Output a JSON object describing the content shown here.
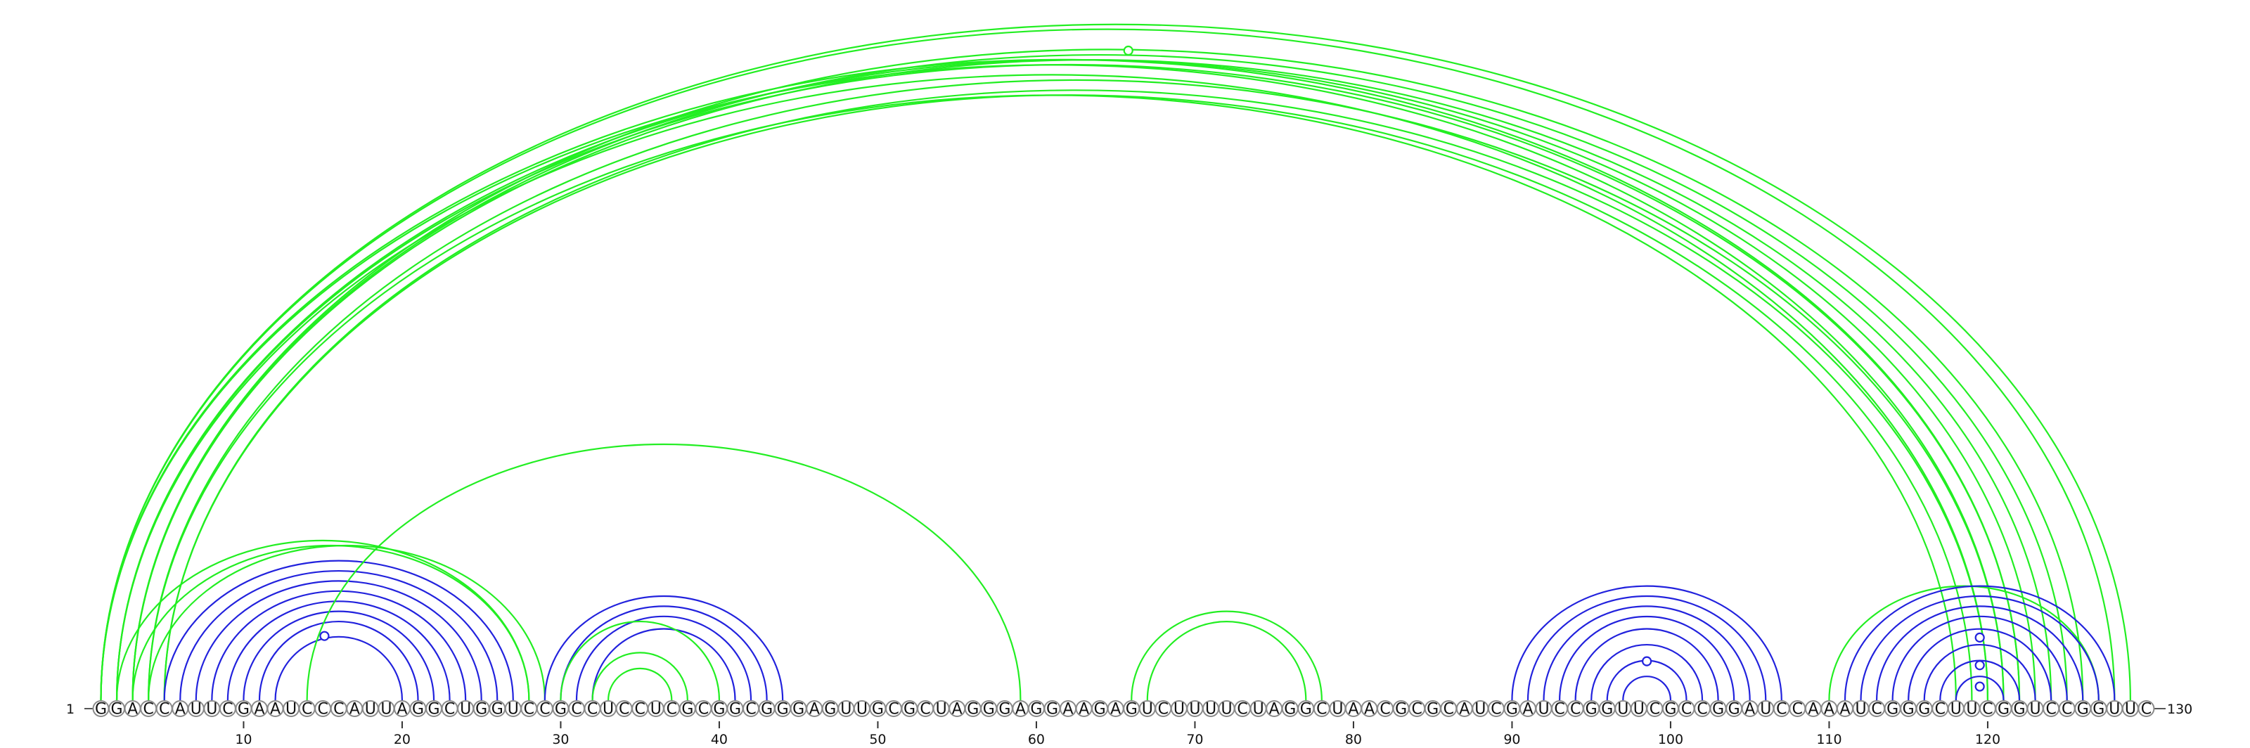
{
  "sequence": "GGACCAUUCGAAUCCCAUUAGGCUGGUCCGCCUCCUCGCGGCGGGAGUUGCGCUAGGGAGGAAGAGUCUUUUCUAGGCUAACGCGCAUCGAUCCGGUUCGCCGGAUCCAAAUCGGGCUUCGGUCCGGUUC",
  "start_label": "1",
  "end_label": "130",
  "axis_ticks": [
    10,
    20,
    30,
    40,
    50,
    60,
    70,
    80,
    90,
    100,
    110,
    120
  ],
  "colors": {
    "green": "#22ee22",
    "blue": "#2222dd"
  },
  "arcs": [
    {
      "i": 1,
      "j": 128,
      "color": "green"
    },
    {
      "i": 1,
      "j": 129,
      "color": "green"
    },
    {
      "i": 1,
      "j": 122,
      "color": "green"
    },
    {
      "i": 1,
      "j": 121,
      "color": "green"
    },
    {
      "i": 2,
      "j": 122,
      "color": "green"
    },
    {
      "i": 2,
      "j": 123,
      "color": "green"
    },
    {
      "i": 2,
      "j": 120,
      "color": "green"
    },
    {
      "i": 3,
      "j": 124,
      "color": "green"
    },
    {
      "i": 3,
      "j": 125,
      "color": "green"
    },
    {
      "i": 3,
      "j": 126,
      "color": "green"
    },
    {
      "i": 4,
      "j": 121,
      "color": "green"
    },
    {
      "i": 4,
      "j": 118,
      "color": "green"
    },
    {
      "i": 5,
      "j": 119,
      "color": "green"
    },
    {
      "i": 5,
      "j": 120,
      "color": "green"
    },
    {
      "i": 2,
      "j": 28,
      "color": "green"
    },
    {
      "i": 3,
      "j": 28,
      "color": "green"
    },
    {
      "i": 4,
      "j": 29,
      "color": "green"
    },
    {
      "i": 5,
      "j": 27,
      "color": "blue"
    },
    {
      "i": 6,
      "j": 26,
      "color": "blue"
    },
    {
      "i": 7,
      "j": 25,
      "color": "blue"
    },
    {
      "i": 8,
      "j": 24,
      "color": "blue"
    },
    {
      "i": 9,
      "j": 23,
      "color": "blue"
    },
    {
      "i": 10,
      "j": 22,
      "color": "blue"
    },
    {
      "i": 11,
      "j": 21,
      "color": "blue"
    },
    {
      "i": 12,
      "j": 20,
      "color": "blue"
    },
    {
      "i": 14,
      "j": 59,
      "color": "green"
    },
    {
      "i": 29,
      "j": 44,
      "color": "blue"
    },
    {
      "i": 30,
      "j": 43,
      "color": "blue"
    },
    {
      "i": 31,
      "j": 42,
      "color": "blue"
    },
    {
      "i": 32,
      "j": 41,
      "color": "blue"
    },
    {
      "i": 32,
      "j": 38,
      "color": "green"
    },
    {
      "i": 33,
      "j": 37,
      "color": "green"
    },
    {
      "i": 30,
      "j": 40,
      "color": "green"
    },
    {
      "i": 66,
      "j": 78,
      "color": "green"
    },
    {
      "i": 67,
      "j": 77,
      "color": "green"
    },
    {
      "i": 90,
      "j": 107,
      "color": "blue"
    },
    {
      "i": 91,
      "j": 106,
      "color": "blue"
    },
    {
      "i": 92,
      "j": 105,
      "color": "blue"
    },
    {
      "i": 93,
      "j": 104,
      "color": "blue"
    },
    {
      "i": 94,
      "j": 103,
      "color": "blue"
    },
    {
      "i": 95,
      "j": 102,
      "color": "blue"
    },
    {
      "i": 96,
      "j": 101,
      "color": "blue"
    },
    {
      "i": 97,
      "j": 100,
      "color": "blue"
    },
    {
      "i": 110,
      "j": 127,
      "color": "green"
    },
    {
      "i": 111,
      "j": 128,
      "color": "blue"
    },
    {
      "i": 112,
      "j": 127,
      "color": "blue"
    },
    {
      "i": 113,
      "j": 126,
      "color": "blue"
    },
    {
      "i": 114,
      "j": 125,
      "color": "blue"
    },
    {
      "i": 115,
      "j": 124,
      "color": "blue"
    },
    {
      "i": 116,
      "j": 123,
      "color": "blue"
    },
    {
      "i": 117,
      "j": 122,
      "color": "blue"
    },
    {
      "i": 118,
      "j": 121,
      "color": "blue"
    }
  ],
  "markers": [
    {
      "x": 65.8,
      "height": 1,
      "color": "green"
    },
    {
      "x": 15.1,
      "height": 0.92,
      "color": "blue"
    },
    {
      "x": 98.5,
      "height": 0.6,
      "color": "blue"
    },
    {
      "x": 119.5,
      "height": 0.9,
      "color": "blue"
    },
    {
      "x": 119.5,
      "height": 0.55,
      "color": "blue"
    },
    {
      "x": 119.5,
      "height": 0.28,
      "color": "blue"
    }
  ]
}
